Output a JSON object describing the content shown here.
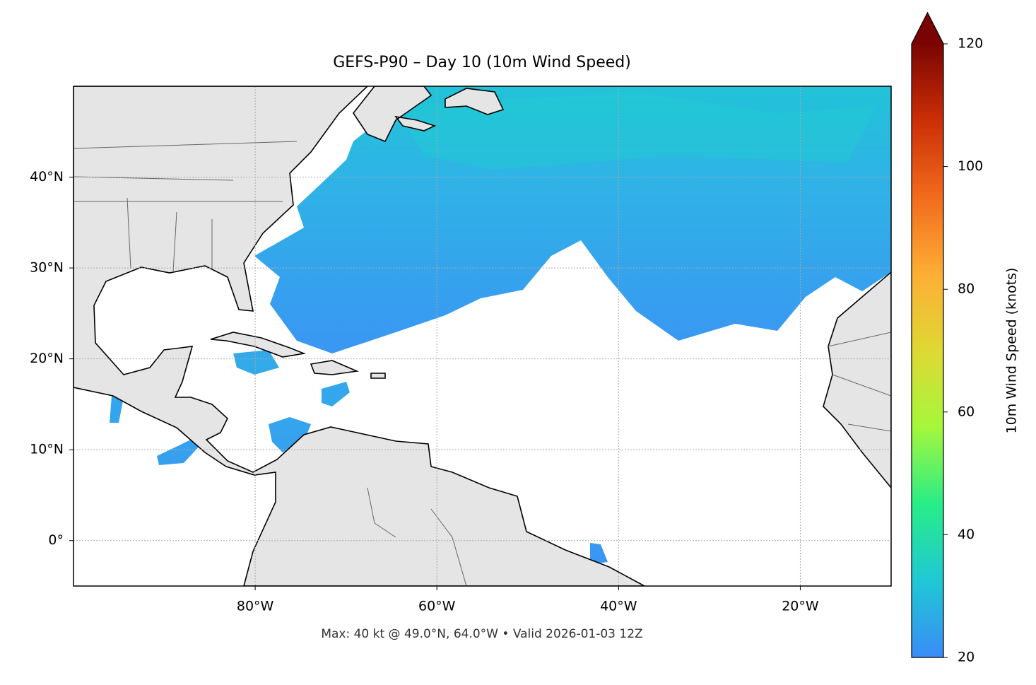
{
  "chart_data": {
    "type": "map",
    "title": "GEFS-P90 – Day 10 (10m Wind Speed)",
    "footer": "Max: 40 kt @ 49.0°N, 64.0°W • Valid 2026-01-03 12Z",
    "xlim": [
      -100,
      -10
    ],
    "ylim": [
      -5,
      50
    ],
    "xticks": [
      {
        "value": -80,
        "label": "80°W"
      },
      {
        "value": -60,
        "label": "60°W"
      },
      {
        "value": -40,
        "label": "40°W"
      },
      {
        "value": -20,
        "label": "20°W"
      }
    ],
    "yticks": [
      {
        "value": 0,
        "label": "0°"
      },
      {
        "value": 10,
        "label": "10°N"
      },
      {
        "value": 20,
        "label": "20°N"
      },
      {
        "value": 30,
        "label": "30°N"
      },
      {
        "value": 40,
        "label": "40°N"
      }
    ],
    "grid": true,
    "colorbar": {
      "label": "10m Wind Speed (knots)",
      "lim": [
        20,
        120
      ],
      "ticks": [
        20,
        40,
        60,
        80,
        100,
        120
      ],
      "extend": "max",
      "colors": [
        "#3a8cf7",
        "#1fc8d4",
        "#28ed87",
        "#a5f73b",
        "#dfd834",
        "#fdae35",
        "#f26b1d",
        "#cc2f06",
        "#7a0403"
      ]
    }
  }
}
